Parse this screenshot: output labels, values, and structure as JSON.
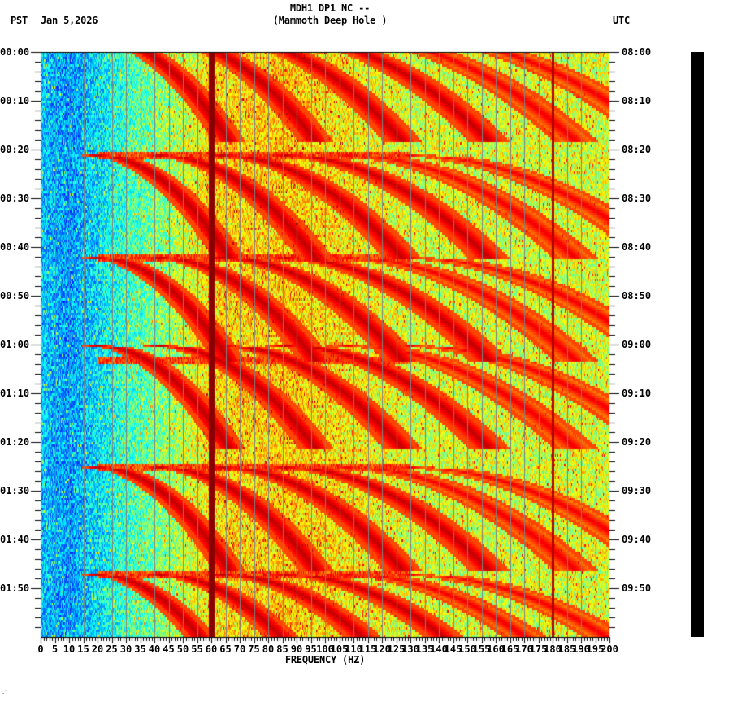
{
  "header": {
    "station_line": "MDH1 DP1 NC --",
    "location_line": "(Mammoth Deep Hole )",
    "left_timezone": "PST",
    "date": "Jan 5,2026",
    "right_timezone": "UTC"
  },
  "corner_mark": "․′",
  "chart_data": {
    "type": "heatmap",
    "title": "MDH1 DP1 NC -- (Mammoth Deep Hole )",
    "subtitle": "PST Jan 5,2026 / UTC",
    "xlabel": "FREQUENCY (HZ)",
    "ylabel_left": "PST time",
    "ylabel_right": "UTC time",
    "xlim": [
      0,
      200
    ],
    "x_ticks": [
      0,
      5,
      10,
      15,
      20,
      25,
      30,
      35,
      40,
      45,
      50,
      55,
      60,
      65,
      70,
      75,
      80,
      85,
      90,
      95,
      100,
      105,
      110,
      115,
      120,
      125,
      130,
      135,
      140,
      145,
      150,
      155,
      160,
      165,
      170,
      175,
      180,
      185,
      190,
      195,
      200
    ],
    "x_minor_tick_step": 1,
    "y_range_minutes": [
      0,
      120
    ],
    "y_ticks_left": [
      "00:00",
      "00:10",
      "00:20",
      "00:30",
      "00:40",
      "00:50",
      "01:00",
      "01:10",
      "01:20",
      "01:30",
      "01:40",
      "01:50"
    ],
    "y_ticks_right": [
      "08:00",
      "08:10",
      "08:20",
      "08:30",
      "08:40",
      "08:50",
      "09:00",
      "09:10",
      "09:20",
      "09:30",
      "09:40",
      "09:50"
    ],
    "y_minor_tick_step_minutes": 2,
    "colormap": [
      "#0000ff",
      "#0080ff",
      "#00ffff",
      "#80ff80",
      "#ffff00",
      "#ff8000",
      "#ff0000",
      "#800000"
    ],
    "background_by_frequency": {
      "description": "blue at low frequency rising to cyan ~25Hz, yellow-green/orange 60-130Hz, green-yellow 130-200Hz",
      "points": [
        [
          0,
          0.22
        ],
        [
          10,
          0.16
        ],
        [
          20,
          0.25
        ],
        [
          30,
          0.35
        ],
        [
          45,
          0.45
        ],
        [
          60,
          0.6
        ],
        [
          90,
          0.62
        ],
        [
          130,
          0.52
        ],
        [
          200,
          0.52
        ]
      ]
    },
    "persistent_lines_hz": [
      {
        "freq": 60,
        "label": "60 Hz power-line",
        "strength": "very strong (dark red)"
      },
      {
        "freq": 180,
        "label": "180 Hz harmonic",
        "strength": "thin dark red"
      }
    ],
    "vertical_grid_lines_hz": [
      5,
      10,
      15,
      20,
      25,
      30,
      35,
      40,
      45,
      50,
      55,
      65,
      70,
      75,
      80,
      85,
      90,
      95,
      100,
      105,
      110,
      115,
      120,
      125,
      130,
      135,
      140,
      145,
      150,
      155,
      160,
      165,
      170,
      175,
      185,
      190,
      195
    ],
    "sweep_cycles": {
      "description": "repeating rising-frequency chirps (arched curves) from ~20Hz upward across harmonics; cycles restart near these minutes",
      "start_minutes": [
        -3,
        21,
        42,
        60,
        85,
        107
      ],
      "harmonic_start_freqs_hz": [
        20,
        42,
        64,
        86,
        108,
        130
      ],
      "sweep_span_hz": 45,
      "cycle_duration_minutes": 20
    },
    "noise_bands_minutes": [
      21,
      42,
      63,
      85,
      107
    ]
  }
}
